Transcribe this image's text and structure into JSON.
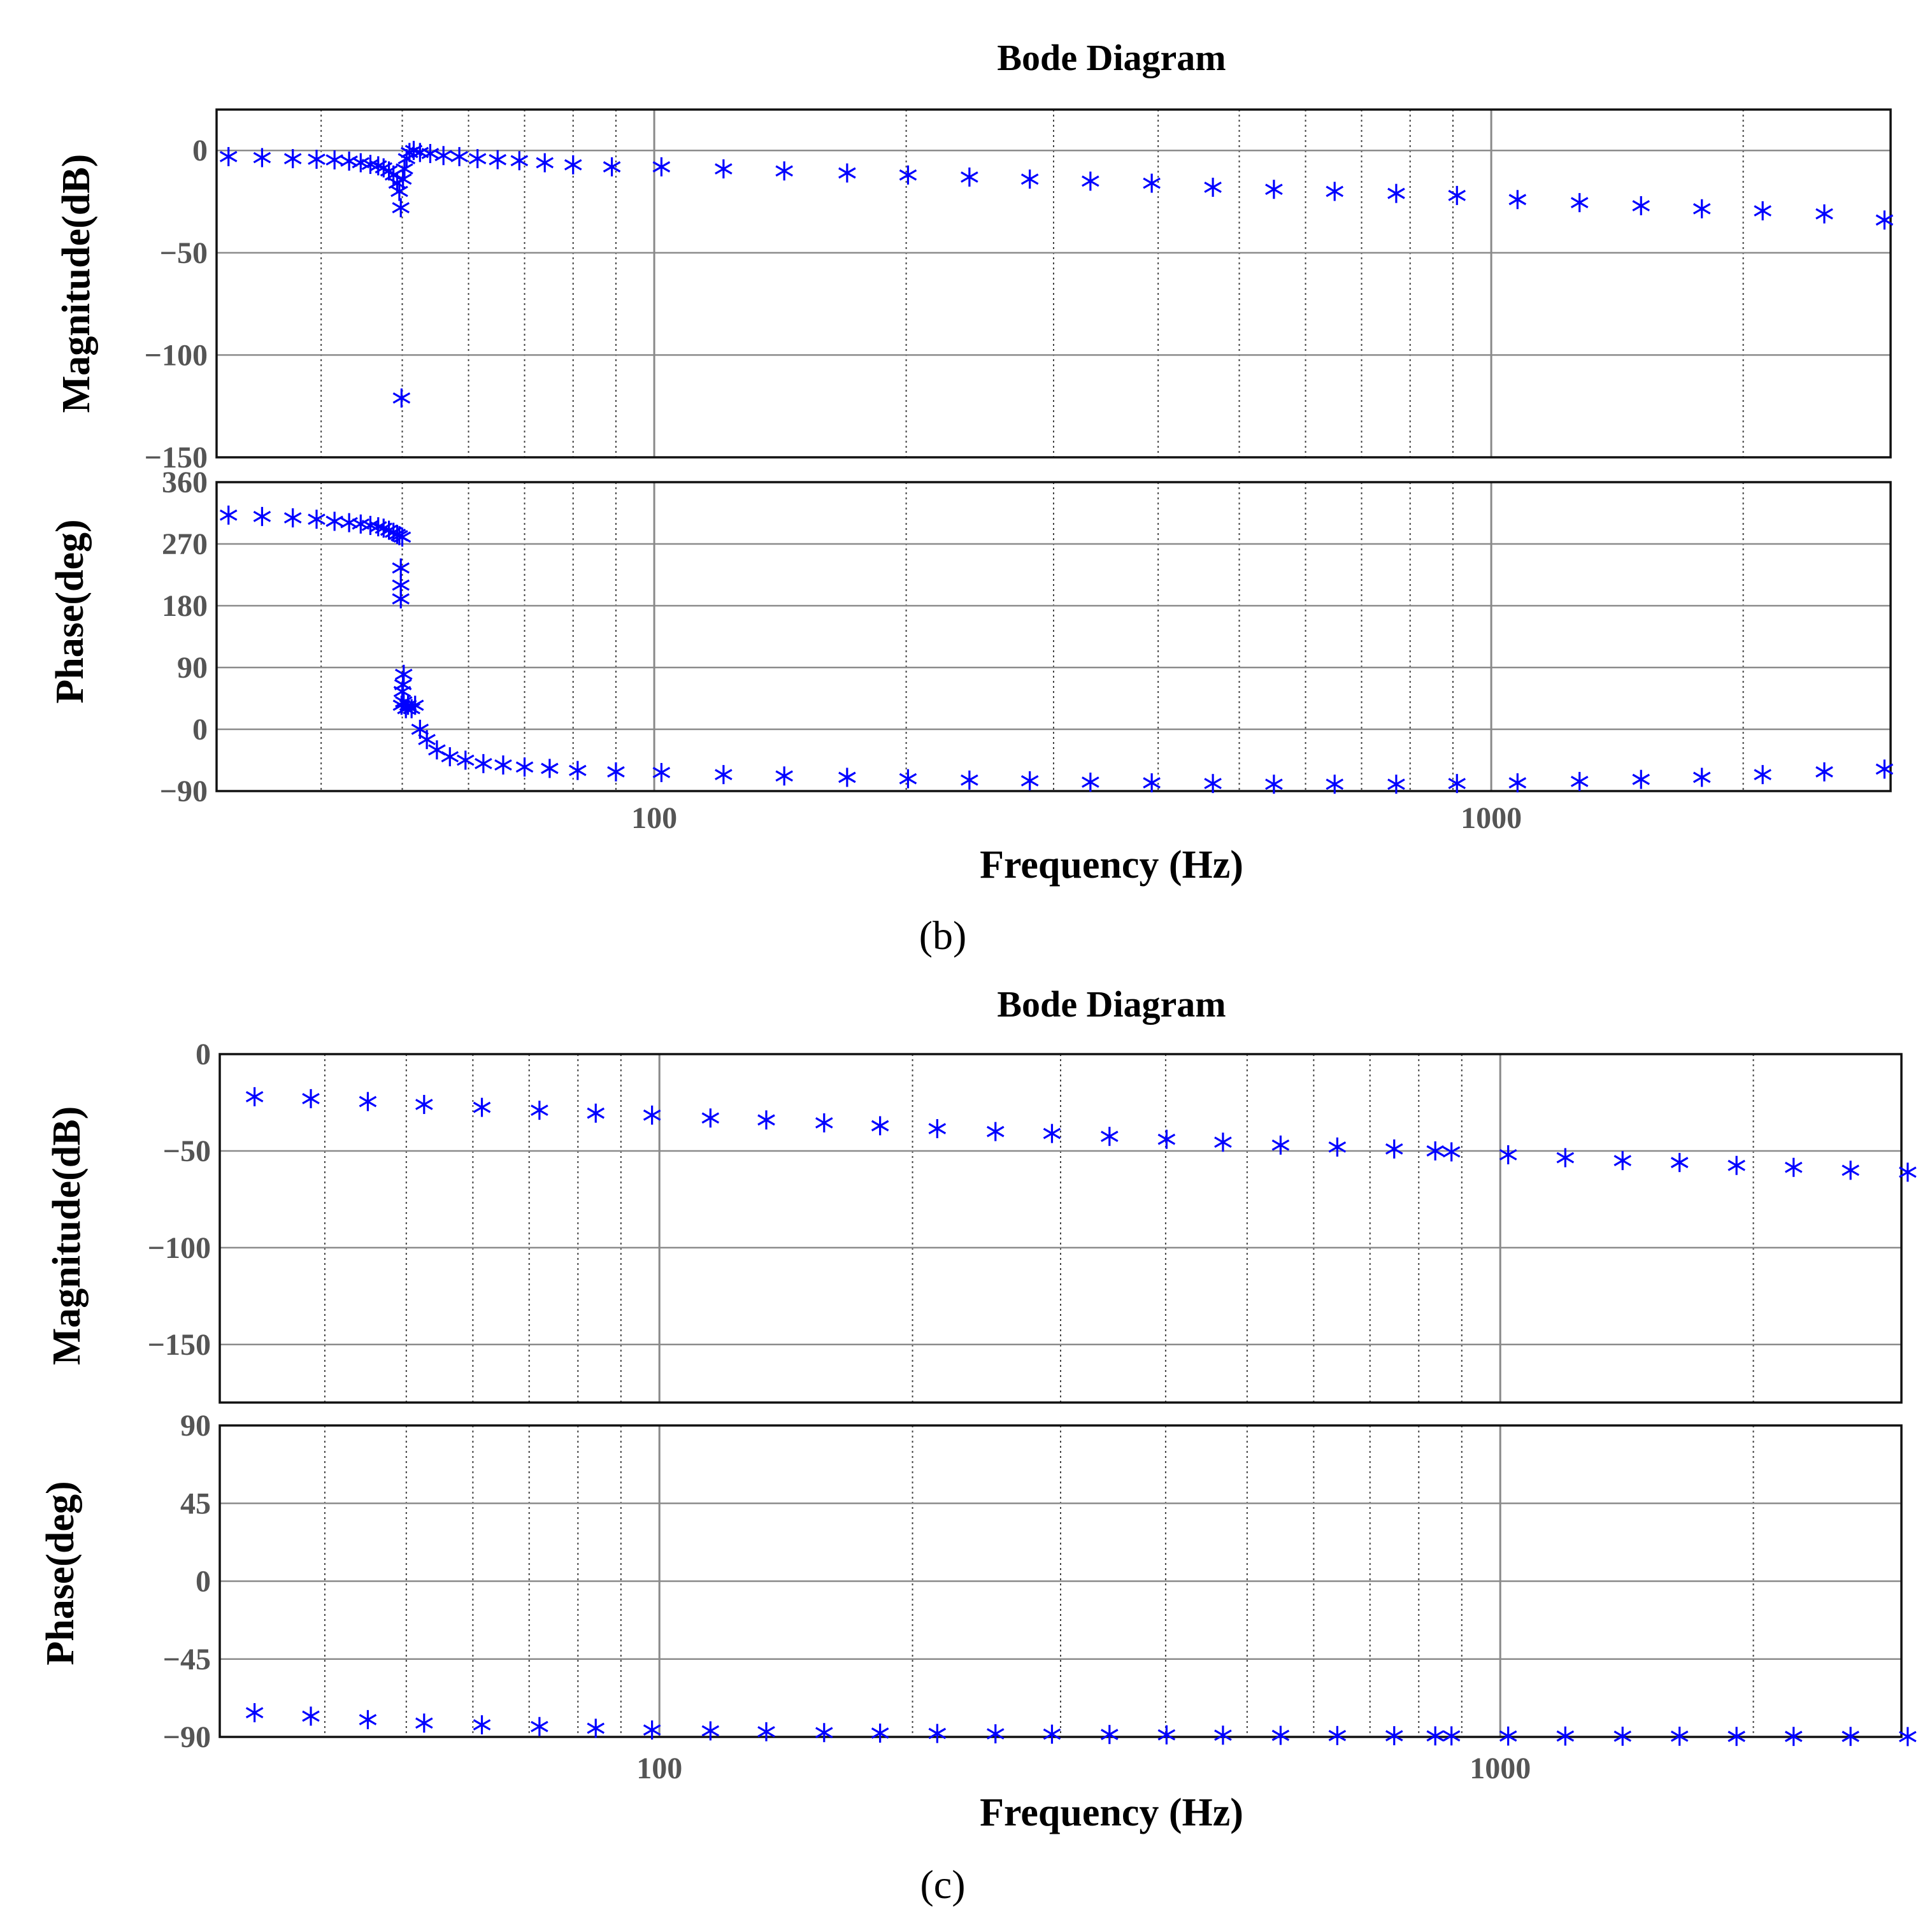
{
  "chart_data": [
    {
      "type": "scatter",
      "caption": "(b)",
      "title": "Bode Diagram",
      "xlabel": "Frequency  (Hz)",
      "xscale": "log",
      "xlim": [
        30,
        3000
      ],
      "xticks": [
        {
          "value": 100,
          "label": "100"
        },
        {
          "value": 1000,
          "label": "1000"
        }
      ],
      "grid": true,
      "marker": "asterisk",
      "marker_color": "#0000ff",
      "subplots": [
        {
          "id": "magnitude",
          "ylabel": "Magnitude(dB)",
          "ylim": [
            -150,
            20
          ],
          "yticks": [
            {
              "value": 0,
              "label": "0"
            },
            {
              "value": -50,
              "label": "−50"
            },
            {
              "value": -100,
              "label": "−100"
            },
            {
              "value": -150,
              "label": "−150"
            }
          ],
          "points": [
            [
              31,
              -3
            ],
            [
              34,
              -3.5
            ],
            [
              37,
              -4
            ],
            [
              39.5,
              -4.3
            ],
            [
              41.5,
              -4.6
            ],
            [
              43.2,
              -5.2
            ],
            [
              44.6,
              -6
            ],
            [
              45.8,
              -6.8
            ],
            [
              46.8,
              -7.5
            ],
            [
              47.5,
              -8.5
            ],
            [
              48.2,
              -10
            ],
            [
              48.8,
              -12
            ],
            [
              49.3,
              -16
            ],
            [
              49.6,
              -20
            ],
            [
              49.8,
              -28
            ],
            [
              49.9,
              -121
            ],
            [
              50.1,
              -14
            ],
            [
              50.3,
              -9
            ],
            [
              50.6,
              -4
            ],
            [
              51,
              -1
            ],
            [
              51.6,
              0
            ],
            [
              52.5,
              -1
            ],
            [
              54,
              -1.5
            ],
            [
              56,
              -2.5
            ],
            [
              58.5,
              -3
            ],
            [
              61.5,
              -4
            ],
            [
              65,
              -4.5
            ],
            [
              69,
              -5
            ],
            [
              74,
              -6
            ],
            [
              80,
              -7
            ],
            [
              89,
              -8
            ],
            [
              102,
              -8
            ],
            [
              121,
              -9
            ],
            [
              143,
              -10
            ],
            [
              170,
              -11
            ],
            [
              201,
              -12
            ],
            [
              238,
              -13
            ],
            [
              281,
              -14
            ],
            [
              332,
              -15
            ],
            [
              393,
              -16
            ],
            [
              465,
              -18
            ],
            [
              550,
              -19
            ],
            [
              650,
              -20
            ],
            [
              770,
              -21
            ],
            [
              910,
              -22
            ],
            [
              1075,
              -24
            ],
            [
              1275,
              -25.5
            ],
            [
              1510,
              -27
            ],
            [
              1785,
              -28.5
            ],
            [
              2110,
              -29.5
            ],
            [
              2500,
              -31
            ],
            [
              2950,
              -34
            ]
          ]
        },
        {
          "id": "phase",
          "ylabel": "Phase(deg)",
          "ylim": [
            -90,
            360
          ],
          "yticks": [
            {
              "value": 360,
              "label": "360"
            },
            {
              "value": 270,
              "label": "270"
            },
            {
              "value": 180,
              "label": "180"
            },
            {
              "value": 90,
              "label": "90"
            },
            {
              "value": 0,
              "label": "0"
            },
            {
              "value": -90,
              "label": "−90"
            }
          ],
          "points": [
            [
              31,
              312
            ],
            [
              34,
              310
            ],
            [
              37,
              308
            ],
            [
              39.5,
              306
            ],
            [
              41.5,
              303
            ],
            [
              43.2,
              301
            ],
            [
              44.6,
              299
            ],
            [
              45.8,
              297
            ],
            [
              46.8,
              295
            ],
            [
              47.5,
              293
            ],
            [
              48.2,
              290
            ],
            [
              48.8,
              287
            ],
            [
              49.3,
              284
            ],
            [
              49.6,
              282
            ],
            [
              50,
              280
            ],
            [
              49.8,
              235
            ],
            [
              49.8,
              210
            ],
            [
              49.8,
              190
            ],
            [
              50.2,
              80
            ],
            [
              50.1,
              65
            ],
            [
              50,
              55
            ],
            [
              50.2,
              40
            ],
            [
              49.9,
              35
            ],
            [
              50.5,
              30
            ],
            [
              50.8,
              35
            ],
            [
              51.3,
              30
            ],
            [
              51.8,
              35
            ],
            [
              52.5,
              0
            ],
            [
              53.5,
              -15
            ],
            [
              55,
              -30
            ],
            [
              57,
              -40
            ],
            [
              59.5,
              -45
            ],
            [
              62.5,
              -50
            ],
            [
              66,
              -52
            ],
            [
              70,
              -55
            ],
            [
              75,
              -57
            ],
            [
              81,
              -60
            ],
            [
              90,
              -62
            ],
            [
              102,
              -63
            ],
            [
              121,
              -66
            ],
            [
              143,
              -68
            ],
            [
              170,
              -70
            ],
            [
              201,
              -72
            ],
            [
              238,
              -74
            ],
            [
              281,
              -75
            ],
            [
              332,
              -77
            ],
            [
              393,
              -78
            ],
            [
              465,
              -79
            ],
            [
              550,
              -80
            ],
            [
              650,
              -80
            ],
            [
              770,
              -80
            ],
            [
              910,
              -79
            ],
            [
              1075,
              -78
            ],
            [
              1275,
              -76
            ],
            [
              1510,
              -73
            ],
            [
              1785,
              -70
            ],
            [
              2110,
              -66
            ],
            [
              2500,
              -62
            ],
            [
              2950,
              -58
            ]
          ]
        }
      ]
    },
    {
      "type": "scatter",
      "caption": "(c)",
      "title": "Bode Diagram",
      "xlabel": "Frequency  (Hz)",
      "xscale": "log",
      "xlim": [
        30,
        3000
      ],
      "xticks": [
        {
          "value": 100,
          "label": "100"
        },
        {
          "value": 1000,
          "label": "1000"
        }
      ],
      "grid": true,
      "marker": "asterisk",
      "marker_color": "#0000ff",
      "subplots": [
        {
          "id": "magnitude",
          "ylabel": "Magnitude(dB)",
          "ylim": [
            -180,
            0
          ],
          "yticks": [
            {
              "value": 0,
              "label": "0"
            },
            {
              "value": -50,
              "label": "−50"
            },
            {
              "value": -100,
              "label": "−100"
            },
            {
              "value": -150,
              "label": "−150"
            }
          ],
          "points": [
            [
              33,
              -22
            ],
            [
              38.5,
              -23
            ],
            [
              45,
              -24.5
            ],
            [
              52.5,
              -26
            ],
            [
              61.5,
              -27.5
            ],
            [
              72,
              -29
            ],
            [
              84,
              -30.5
            ],
            [
              98,
              -31.5
            ],
            [
              115,
              -33
            ],
            [
              134,
              -34
            ],
            [
              157,
              -35.5
            ],
            [
              183,
              -37
            ],
            [
              214,
              -38.5
            ],
            [
              251,
              -40
            ],
            [
              293,
              -41
            ],
            [
              343,
              -42.5
            ],
            [
              401,
              -44
            ],
            [
              468,
              -45.5
            ],
            [
              548,
              -47
            ],
            [
              640,
              -48
            ],
            [
              748,
              -49
            ],
            [
              837,
              -50
            ],
            [
              875,
              -50.5
            ],
            [
              1022,
              -52
            ],
            [
              1195,
              -53.5
            ],
            [
              1398,
              -55
            ],
            [
              1634,
              -56
            ],
            [
              1910,
              -57.5
            ],
            [
              2233,
              -58.5
            ],
            [
              2610,
              -60
            ],
            [
              3052,
              -61
            ]
          ]
        },
        {
          "id": "phase",
          "ylabel": "Phase(deg)",
          "ylim": [
            -90,
            90
          ],
          "yticks": [
            {
              "value": 90,
              "label": "90"
            },
            {
              "value": 45,
              "label": "45"
            },
            {
              "value": 0,
              "label": "0"
            },
            {
              "value": -45,
              "label": "−45"
            },
            {
              "value": -90,
              "label": "−90"
            }
          ],
          "points": [
            [
              33,
              -76
            ],
            [
              38.5,
              -78
            ],
            [
              45,
              -80
            ],
            [
              52.5,
              -82
            ],
            [
              61.5,
              -83
            ],
            [
              72,
              -84
            ],
            [
              84,
              -85
            ],
            [
              98,
              -86
            ],
            [
              115,
              -86.5
            ],
            [
              134,
              -87
            ],
            [
              157,
              -87.5
            ],
            [
              183,
              -87.8
            ],
            [
              214,
              -88
            ],
            [
              251,
              -88.2
            ],
            [
              293,
              -88.4
            ],
            [
              343,
              -88.6
            ],
            [
              401,
              -88.8
            ],
            [
              468,
              -89
            ],
            [
              548,
              -89.1
            ],
            [
              640,
              -89.2
            ],
            [
              748,
              -89.3
            ],
            [
              837,
              -89.4
            ],
            [
              875,
              -89.4
            ],
            [
              1022,
              -89.5
            ],
            [
              1195,
              -89.5
            ],
            [
              1398,
              -89.6
            ],
            [
              1634,
              -89.6
            ],
            [
              1910,
              -89.7
            ],
            [
              2233,
              -89.7
            ],
            [
              2610,
              -89.7
            ],
            [
              3052,
              -89.8
            ]
          ]
        }
      ]
    }
  ]
}
